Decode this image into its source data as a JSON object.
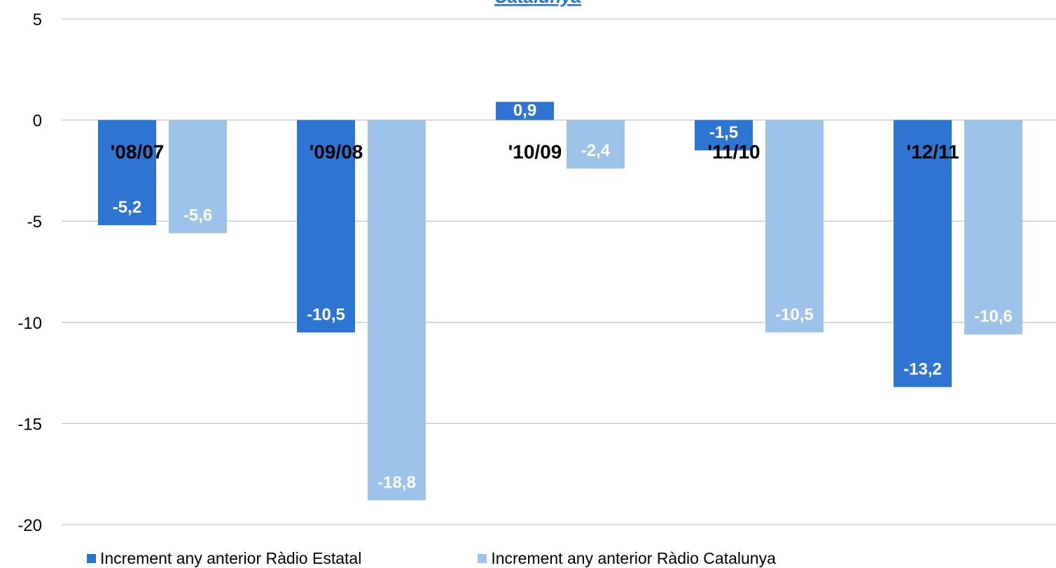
{
  "chart_data": {
    "type": "bar",
    "title": "Catalunya",
    "categories": [
      "'08/07",
      "'09/08",
      "'10/09",
      "'11/10",
      "'12/11"
    ],
    "series": [
      {
        "name": "Increment any anterior Ràdio Estatal",
        "color": "#2e75d1",
        "values": [
          -5.2,
          -10.5,
          0.9,
          -1.5,
          -13.2
        ],
        "labels": [
          "-5,2",
          "-10,5",
          "0,9",
          "-1,5",
          "-13,2"
        ]
      },
      {
        "name": "Increment any anterior Ràdio Catalunya",
        "color": "#9dc3ea",
        "values": [
          -5.6,
          -18.8,
          -2.4,
          -10.5,
          -10.6
        ],
        "labels": [
          "-5,6",
          "-18,8",
          "-2,4",
          "-10,5",
          "-10,6"
        ]
      }
    ],
    "yticks": [
      "5",
      "0",
      "-5",
      "-10",
      "-15",
      "-20"
    ],
    "ylim": [
      -20,
      5
    ],
    "xlabel": "",
    "ylabel": "",
    "grid": true,
    "legend": "bottom"
  }
}
